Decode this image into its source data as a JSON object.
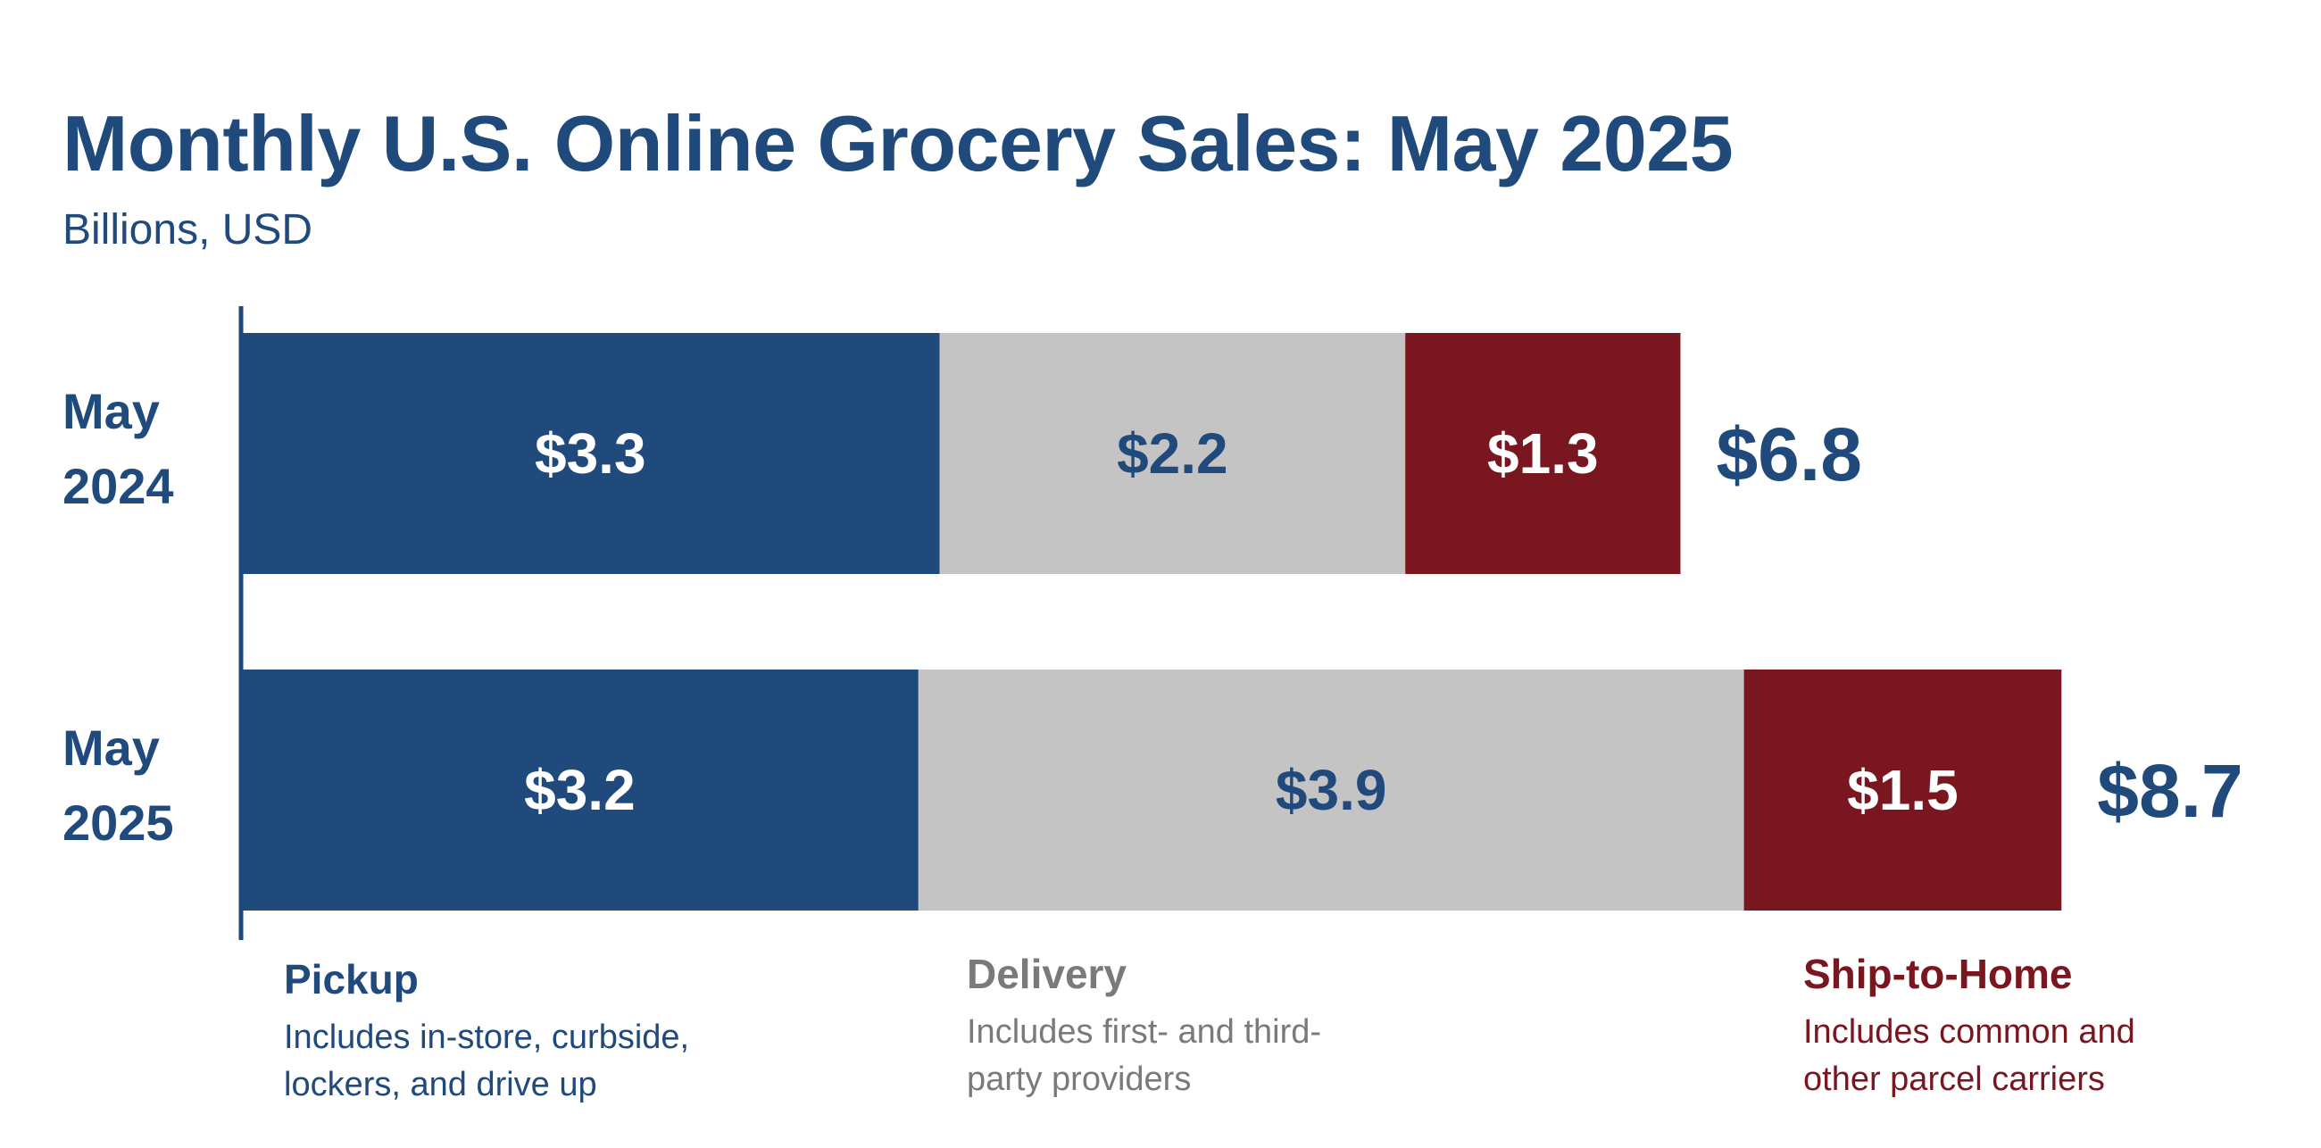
{
  "chart_data": {
    "type": "bar",
    "orientation": "horizontal",
    "stacked": true,
    "title": "Monthly U.S. Online Grocery Sales: May 2025",
    "subtitle": "Billions, USD",
    "categories": [
      {
        "line1": "May",
        "line2": "2024",
        "total_label": "$6.8"
      },
      {
        "line1": "May",
        "line2": "2025",
        "total_label": "$8.7"
      }
    ],
    "totals": [
      6.8,
      8.7
    ],
    "series": [
      {
        "name": "Pickup",
        "color": "#204a7c",
        "label_color": "#ffffff",
        "values": [
          3.3,
          3.2
        ],
        "labels": [
          "$3.3",
          "$3.2"
        ]
      },
      {
        "name": "Delivery",
        "color": "#c4c4c4",
        "label_color": "#204a7c",
        "values": [
          2.2,
          3.9
        ],
        "labels": [
          "$2.2",
          "$3.9"
        ]
      },
      {
        "name": "Ship-to-Home",
        "color": "#7a1620",
        "label_color": "#ffffff",
        "values": [
          1.3,
          1.5
        ],
        "labels": [
          "$1.3",
          "$1.5"
        ]
      }
    ],
    "xlim": [
      0,
      8.7
    ],
    "grid": false
  },
  "legend": {
    "pickup": {
      "title": "Pickup",
      "desc_line1": "Includes in-store, curbside,",
      "desc_line2": "lockers, and drive up"
    },
    "delivery": {
      "title": "Delivery",
      "desc_line1": "Includes first- and third-",
      "desc_line2": "party providers"
    },
    "ship": {
      "title": "Ship-to-Home",
      "desc_line1": "Includes common and",
      "desc_line2": "other parcel carriers"
    }
  },
  "colors": {
    "title": "#204a7c",
    "axis": "#204a7c"
  }
}
